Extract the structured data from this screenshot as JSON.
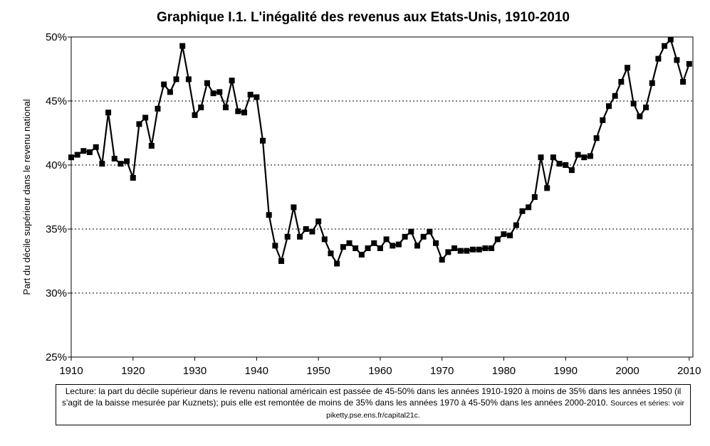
{
  "chart_data": {
    "type": "line",
    "title": "Graphique I.1. L'inégalité des revenus aux Etats-Unis, 1910-2010",
    "y_label": "Part du décile supérieur dans le revenu national",
    "note": "Lecture: la part du décile supérieur dans le revenu national américain est passée de 45-50% dans les années 1910-1920 à moins de 35% dans les années 1950 (il s'agit de la baisse mesurée par Kuznets); puis elle est remontée de moins de 35% dans les années 1970 à 45-50% dans les années 2000-2010.",
    "sources": "Sources et séries: voir piketty.pse.ens.fr/capital21c.",
    "x": [
      1910,
      1911,
      1912,
      1913,
      1914,
      1915,
      1916,
      1917,
      1918,
      1919,
      1920,
      1921,
      1922,
      1923,
      1924,
      1925,
      1926,
      1927,
      1928,
      1929,
      1930,
      1931,
      1932,
      1933,
      1934,
      1935,
      1936,
      1937,
      1938,
      1939,
      1940,
      1941,
      1942,
      1943,
      1944,
      1945,
      1946,
      1947,
      1948,
      1949,
      1950,
      1951,
      1952,
      1953,
      1954,
      1955,
      1956,
      1957,
      1958,
      1959,
      1960,
      1961,
      1962,
      1963,
      1964,
      1965,
      1966,
      1967,
      1968,
      1969,
      1970,
      1971,
      1972,
      1973,
      1974,
      1975,
      1976,
      1977,
      1978,
      1979,
      1980,
      1981,
      1982,
      1983,
      1984,
      1985,
      1986,
      1987,
      1988,
      1989,
      1990,
      1991,
      1992,
      1993,
      1994,
      1995,
      1996,
      1997,
      1998,
      1999,
      2000,
      2001,
      2002,
      2003,
      2004,
      2005,
      2006,
      2007,
      2008,
      2009,
      2010
    ],
    "series": [
      {
        "color": "#000000",
        "values": [
          40.6,
          40.8,
          41.1,
          41.0,
          41.4,
          40.1,
          44.1,
          40.5,
          40.1,
          40.3,
          39.0,
          43.2,
          43.7,
          41.5,
          44.4,
          46.3,
          45.7,
          46.7,
          49.3,
          46.7,
          43.9,
          44.5,
          46.4,
          45.6,
          45.7,
          44.5,
          46.6,
          44.2,
          44.1,
          45.5,
          45.3,
          41.9,
          36.1,
          33.7,
          32.5,
          34.4,
          36.7,
          34.4,
          35.0,
          34.8,
          35.6,
          34.2,
          33.1,
          32.3,
          33.6,
          33.9,
          33.5,
          33.0,
          33.5,
          33.9,
          33.5,
          34.2,
          33.7,
          33.8,
          34.4,
          34.8,
          33.7,
          34.4,
          34.8,
          33.9,
          32.6,
          33.2,
          33.5,
          33.3,
          33.3,
          33.4,
          33.4,
          33.5,
          33.5,
          34.2,
          34.6,
          34.5,
          35.3,
          36.4,
          36.7,
          37.5,
          40.6,
          38.2,
          40.6,
          40.1,
          40.0,
          39.6,
          40.8,
          40.6,
          40.7,
          42.1,
          43.5,
          44.6,
          45.4,
          46.5,
          47.6,
          44.8,
          43.8,
          44.5,
          46.4,
          48.3,
          49.3,
          49.8,
          48.2,
          46.5,
          47.9
        ]
      }
    ],
    "xlim": [
      1910,
      2010.6
    ],
    "xticks": [
      1910,
      1920,
      1930,
      1940,
      1950,
      1960,
      1970,
      1980,
      1990,
      2000,
      2010
    ],
    "ylim": [
      25,
      50
    ],
    "yticks": [
      {
        "value": 25,
        "label": "25%"
      },
      {
        "value": 30,
        "label": "30%"
      },
      {
        "value": 35,
        "label": "35%"
      },
      {
        "value": 40,
        "label": "40%"
      },
      {
        "value": 45,
        "label": "45%"
      },
      {
        "value": 50,
        "label": "50%"
      }
    ],
    "grid": true
  }
}
